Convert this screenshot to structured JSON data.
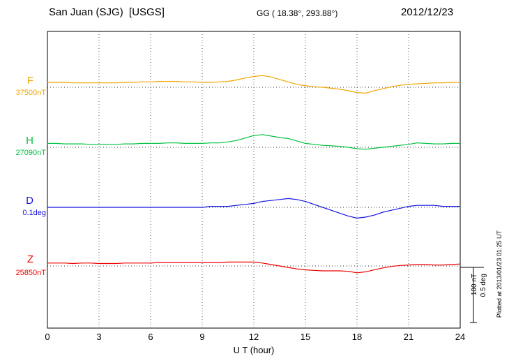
{
  "header": {
    "station": "San Juan (SJG)  [USGS]",
    "coords": "GG ( 18.38°, 293.88°)",
    "date": "2012/12/23"
  },
  "side_note": {
    "plotted_at": "Plotted at 2013/01/23 01:25 UT"
  },
  "chart_data": {
    "type": "line",
    "title": "San Juan (SJG) [USGS] magnetogram 2012/12/23",
    "xlabel": "U T (hour)",
    "xlim": [
      0,
      24
    ],
    "x_ticks": [
      0,
      3,
      6,
      9,
      12,
      15,
      18,
      21,
      24
    ],
    "x_start": 0,
    "x_step": 0.5,
    "grid": "dotted-vertical-at-3h",
    "scale": {
      "nt_label": "100 nT",
      "deg_label": "0.5 deg"
    },
    "series": [
      {
        "name": "F",
        "color": "#F0A500",
        "baseline_label": "37500nT",
        "baseline_value": 37500,
        "unit": "nT",
        "offsets": [
          10,
          10,
          10,
          9,
          9,
          9,
          9,
          9,
          9,
          10,
          10,
          11,
          11,
          12,
          12,
          12,
          11,
          11,
          10,
          10,
          11,
          12,
          15,
          19,
          22,
          24,
          21,
          16,
          11,
          6,
          3,
          1,
          0,
          -2,
          -4,
          -7,
          -11,
          -12,
          -7,
          -3,
          1,
          4,
          6,
          7,
          8,
          9,
          9,
          10,
          10
        ]
      },
      {
        "name": "H",
        "color": "#00C040",
        "baseline_label": "27090nT",
        "baseline_value": 27090,
        "unit": "nT",
        "offsets": [
          8,
          8,
          7,
          7,
          7,
          6,
          6,
          6,
          6,
          7,
          7,
          8,
          8,
          8,
          9,
          9,
          8,
          8,
          8,
          9,
          9,
          11,
          14,
          19,
          24,
          26,
          23,
          20,
          18,
          13,
          8,
          6,
          4,
          3,
          2,
          0,
          -3,
          -4,
          -2,
          0,
          2,
          4,
          6,
          9,
          8,
          7,
          7,
          8,
          8
        ]
      },
      {
        "name": "D",
        "color": "#1515E0",
        "baseline_label": "0.1deg",
        "baseline_value": 0.1,
        "unit": "deg",
        "offsets": [
          0,
          0,
          0,
          0,
          0,
          0,
          0,
          0,
          0,
          0,
          0,
          0,
          0,
          0,
          0,
          0,
          0,
          0,
          0,
          0.01,
          0.01,
          0.01,
          0.02,
          0.03,
          0.04,
          0.06,
          0.07,
          0.08,
          0.09,
          0.08,
          0.06,
          0.03,
          0,
          -0.03,
          -0.06,
          -0.09,
          -0.11,
          -0.1,
          -0.08,
          -0.05,
          -0.03,
          -0.01,
          0.01,
          0.02,
          0.02,
          0.02,
          0.01,
          0.01,
          0.01
        ]
      },
      {
        "name": "Z",
        "color": "#EE0000",
        "baseline_label": "25850nT",
        "baseline_value": 25850,
        "unit": "nT",
        "offsets": [
          6,
          6,
          6,
          5,
          6,
          6,
          5,
          5,
          5,
          6,
          6,
          6,
          6,
          7,
          7,
          7,
          7,
          7,
          7,
          7,
          7,
          8,
          8,
          8,
          8,
          6,
          3,
          0,
          -3,
          -6,
          -8,
          -9,
          -10,
          -10,
          -10,
          -11,
          -14,
          -12,
          -8,
          -4,
          -1,
          1,
          2,
          3,
          3,
          2,
          2,
          3,
          4
        ]
      }
    ]
  }
}
